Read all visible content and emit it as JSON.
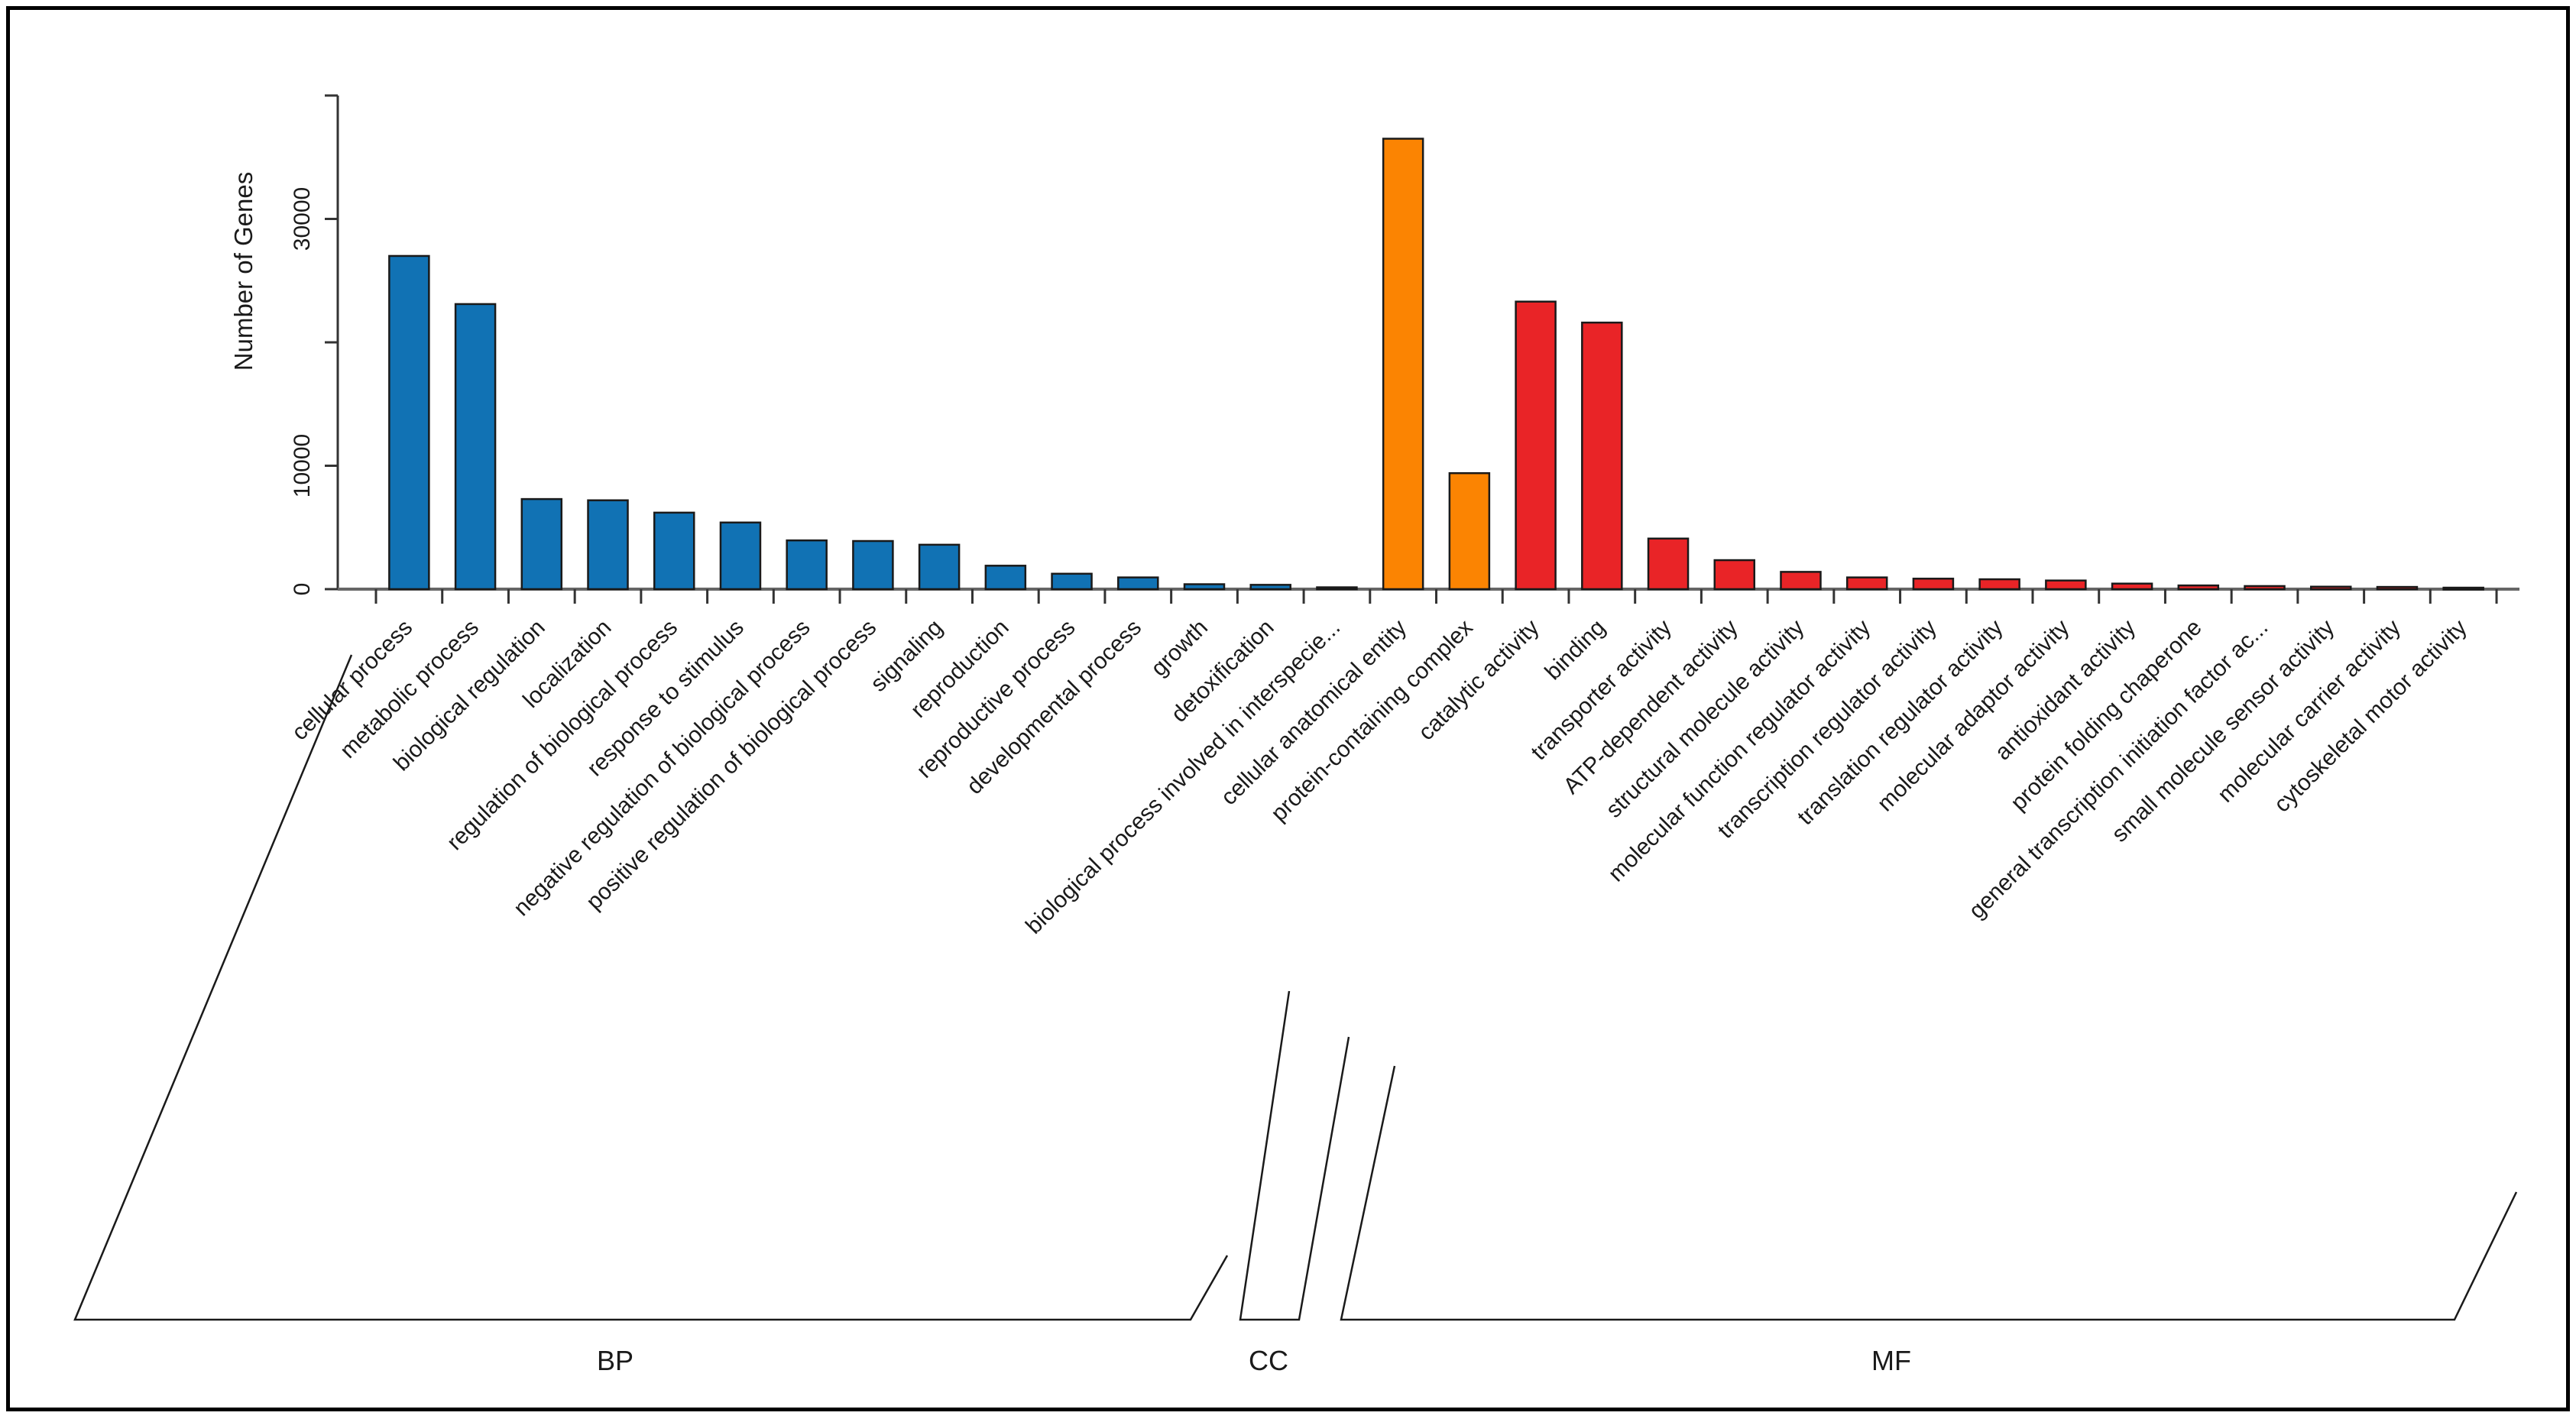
{
  "figure": {
    "background": "#ffffff",
    "border_color": "#000000"
  },
  "chart_data": {
    "type": "bar",
    "title": "",
    "xlabel": "",
    "ylabel": "Number of Genes",
    "ylim": [
      0,
      40000
    ],
    "yticks": [
      0,
      10000,
      20000,
      30000,
      40000
    ],
    "ytick_labels": [
      "0",
      "10000",
      "",
      "30000",
      ""
    ],
    "grid": false,
    "legend_position": "none",
    "bar_border_color": "#1a1a1a",
    "axis_color": "#333333",
    "baseline_color": "#666666",
    "groups": [
      {
        "name": "BP",
        "color": "#1172B4",
        "categories": [
          "cellular process",
          "metabolic process",
          "biological regulation",
          "localization",
          "regulation of biological process",
          "response to stimulus",
          "negative regulation of biological process",
          "positive regulation of biological process",
          "signaling",
          "reproduction",
          "reproductive process",
          "developmental process",
          "growth",
          "detoxification",
          "biological process involved in interspecie..."
        ],
        "values": [
          27000,
          23100,
          7300,
          7200,
          6200,
          5400,
          3950,
          3900,
          3600,
          1900,
          1250,
          950,
          400,
          350,
          150
        ]
      },
      {
        "name": "CC",
        "color": "#FB8402",
        "categories": [
          "cellular anatomical entity",
          "protein-containing complex"
        ],
        "values": [
          36500,
          9400
        ]
      },
      {
        "name": "MF",
        "color": "#E92427",
        "categories": [
          "catalytic activity",
          "binding",
          "transporter activity",
          "ATP-dependent activity",
          "structural molecule activity",
          "molecular function regulator activity",
          "transcription regulator activity",
          "translation regulator activity",
          "molecular adaptor activity",
          "antioxidant activity",
          "protein folding chaperone",
          "general transcription initiation factor ac...",
          "small molecule sensor activity",
          "molecular carrier activity",
          "cytoskeletal motor activity"
        ],
        "values": [
          23300,
          21600,
          4100,
          2350,
          1400,
          950,
          850,
          800,
          700,
          450,
          300,
          250,
          200,
          180,
          120
        ]
      }
    ],
    "group_labels": {
      "bp": "BP",
      "cc": "CC",
      "mf": "MF"
    }
  }
}
